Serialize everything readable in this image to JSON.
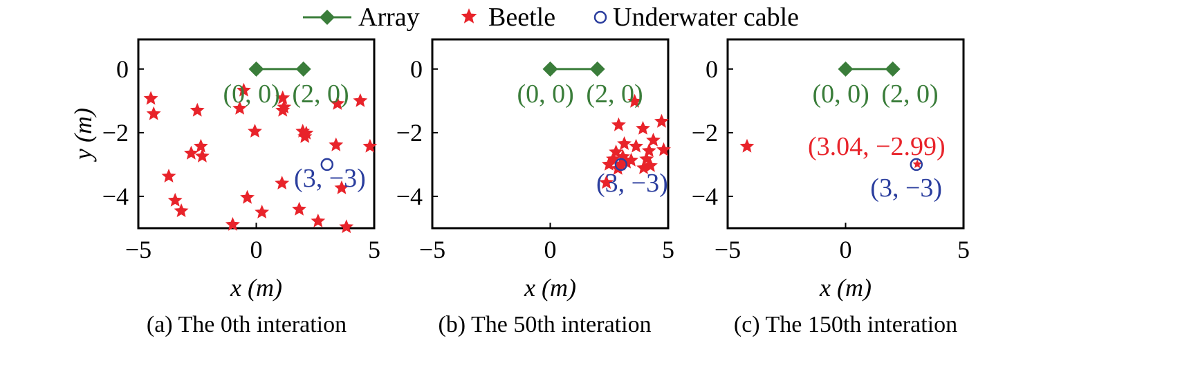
{
  "legend": {
    "placement": "top-center",
    "items": [
      {
        "label": "Array",
        "marker": "diamond-line",
        "color": "#3a7d3a"
      },
      {
        "label": "Beetle",
        "marker": "star",
        "color": "#e8232a"
      },
      {
        "label": "Underwater cable",
        "marker": "circle-open",
        "color": "#2b3e9e"
      }
    ]
  },
  "chart_data": [
    {
      "type": "scatter",
      "caption": "(a) The 0th interation",
      "xlabel": "x (m)",
      "ylabel": "y (m)",
      "xlim": [
        -5,
        5
      ],
      "ylim": [
        -5,
        0.93
      ],
      "xticks": [
        "−5",
        "0",
        "5"
      ],
      "yticks": [
        "0",
        "−2",
        "−4"
      ],
      "grid": false,
      "array": [
        [
          0,
          0
        ],
        [
          2,
          0
        ]
      ],
      "array_labels": [
        "(0, 0)",
        "(2, 0)"
      ],
      "cable": [
        3,
        -3
      ],
      "cable_label": "(3, −3)",
      "beetles": [
        [
          -4.47,
          -0.93
        ],
        [
          -4.35,
          -1.41
        ],
        [
          -2.5,
          -1.3
        ],
        [
          -0.53,
          -0.67
        ],
        [
          -0.7,
          -1.24
        ],
        [
          1.12,
          -0.91
        ],
        [
          1.18,
          -1.2
        ],
        [
          1.12,
          -1.3
        ],
        [
          -0.06,
          -1.96
        ],
        [
          1.97,
          -1.96
        ],
        [
          2.06,
          -2.13
        ],
        [
          2.12,
          -2.02
        ],
        [
          3.44,
          -1.09
        ],
        [
          4.41,
          -1.0
        ],
        [
          4.82,
          -2.43
        ],
        [
          3.38,
          -2.39
        ],
        [
          -2.76,
          -2.65
        ],
        [
          -2.35,
          -2.43
        ],
        [
          -2.29,
          -2.74
        ],
        [
          -3.71,
          -3.37
        ],
        [
          -3.44,
          -4.13
        ],
        [
          -3.18,
          -4.46
        ],
        [
          -0.38,
          -4.04
        ],
        [
          0.24,
          -4.5
        ],
        [
          1.09,
          -3.59
        ],
        [
          1.82,
          -4.41
        ],
        [
          3.62,
          -3.74
        ],
        [
          2.62,
          -4.78
        ],
        [
          -1.0,
          -4.89
        ],
        [
          3.82,
          -4.96
        ]
      ],
      "best_label": ""
    },
    {
      "type": "scatter",
      "caption": "(b) The 50th interation",
      "xlabel": "x (m)",
      "ylabel": "",
      "xlim": [
        -5,
        5
      ],
      "ylim": [
        -5,
        0.93
      ],
      "xticks": [
        "−5",
        "0",
        "5"
      ],
      "yticks": [
        "0",
        "−2",
        "−4"
      ],
      "grid": false,
      "array": [
        [
          0,
          0
        ],
        [
          2,
          0
        ]
      ],
      "array_labels": [
        "(0, 0)",
        "(2, 0)"
      ],
      "cable": [
        3,
        -3
      ],
      "cable_label": "(3, −3)",
      "beetles": [
        [
          3.58,
          -1.02
        ],
        [
          2.9,
          -1.76
        ],
        [
          3.93,
          -1.87
        ],
        [
          4.72,
          -1.65
        ],
        [
          4.37,
          -2.24
        ],
        [
          4.19,
          -2.57
        ],
        [
          4.81,
          -2.54
        ],
        [
          3.64,
          -2.43
        ],
        [
          3.14,
          -2.35
        ],
        [
          2.79,
          -2.61
        ],
        [
          2.67,
          -2.83
        ],
        [
          2.99,
          -3.0
        ],
        [
          3.23,
          -2.93
        ],
        [
          3.43,
          -2.87
        ],
        [
          4.08,
          -2.83
        ],
        [
          4.25,
          -3.04
        ],
        [
          2.49,
          -3.0
        ],
        [
          2.38,
          -3.57
        ],
        [
          2.87,
          -3.13
        ],
        [
          3.08,
          -2.76
        ],
        [
          3.96,
          -3.11
        ]
      ],
      "best_label": ""
    },
    {
      "type": "scatter",
      "caption": "(c) The 150th interation",
      "xlabel": "x (m)",
      "ylabel": "",
      "xlim": [
        -5,
        5
      ],
      "ylim": [
        -5,
        0.93
      ],
      "xticks": [
        "−5",
        "0",
        "5"
      ],
      "yticks": [
        "0",
        "−2",
        "−4"
      ],
      "grid": false,
      "array": [
        [
          0,
          0
        ],
        [
          2,
          0
        ]
      ],
      "array_labels": [
        "(0, 0)",
        "(2, 0)"
      ],
      "cable": [
        3,
        -3
      ],
      "cable_label": "(3, −3)",
      "beetles": [
        [
          -4.18,
          -2.43
        ],
        [
          3.04,
          -2.99
        ]
      ],
      "best_label": "(3.04, −2.99)"
    }
  ]
}
